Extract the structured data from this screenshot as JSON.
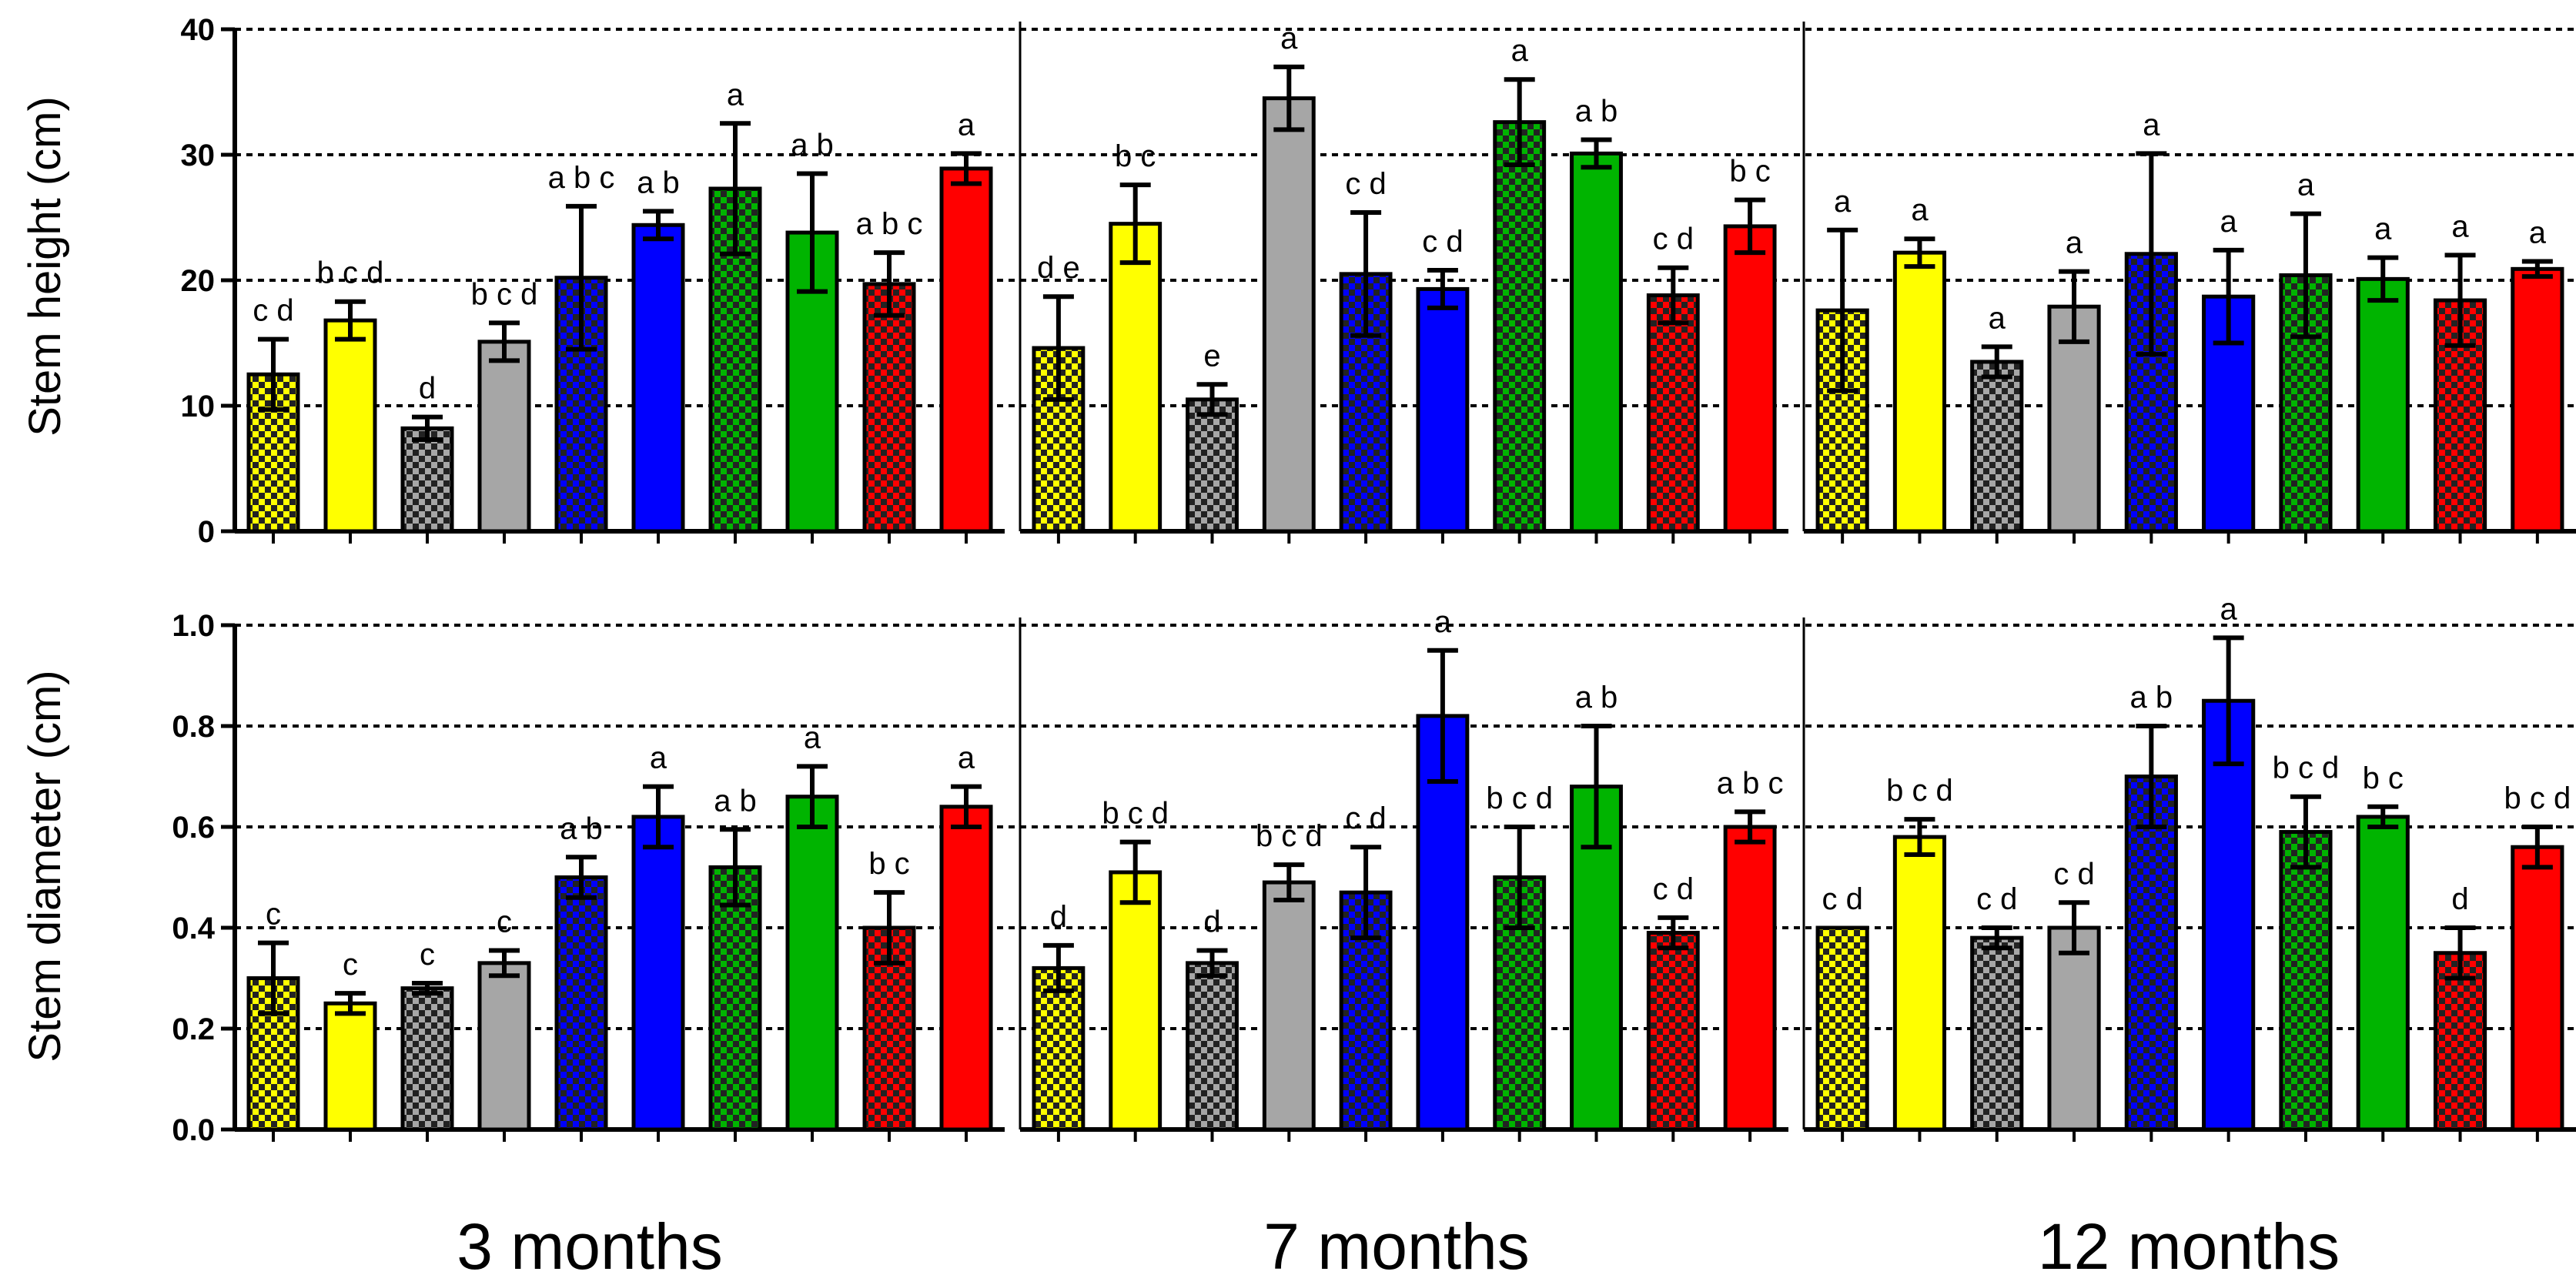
{
  "colors": {
    "yellow": "#ffff00",
    "gray": "#a6a6a6",
    "blue": "#0000ff",
    "green": "#00b400",
    "red": "#ff0000"
  },
  "bar_styles": [
    {
      "color": "yellow",
      "pattern": "checker"
    },
    {
      "color": "yellow",
      "pattern": "solid"
    },
    {
      "color": "gray",
      "pattern": "checker"
    },
    {
      "color": "gray",
      "pattern": "solid"
    },
    {
      "color": "blue",
      "pattern": "checker"
    },
    {
      "color": "blue",
      "pattern": "solid"
    },
    {
      "color": "green",
      "pattern": "checker"
    },
    {
      "color": "green",
      "pattern": "solid"
    },
    {
      "color": "red",
      "pattern": "checker"
    },
    {
      "color": "red",
      "pattern": "solid"
    }
  ],
  "period_labels": [
    "3 months",
    "7 months",
    "12 months"
  ],
  "chart_data": [
    {
      "type": "bar",
      "title": "",
      "ylabel": "Stem height (cm)",
      "ylim": [
        0,
        40
      ],
      "yticks": [
        "0",
        "10",
        "20",
        "30",
        "40"
      ],
      "grid": "dashed at 10, 20, 30, 40",
      "panels": [
        {
          "period": "3 months",
          "values": [
            12.5,
            16.8,
            8.2,
            15.1,
            20.2,
            24.4,
            27.3,
            23.8,
            19.7,
            28.9
          ],
          "errors": [
            2.8,
            1.5,
            0.9,
            1.5,
            5.7,
            1.1,
            5.2,
            4.7,
            2.5,
            1.2
          ],
          "letters": [
            "c d",
            "b c d",
            "d",
            "b c d",
            "a b c",
            "a b",
            "a",
            "a b",
            "a b c",
            "a"
          ]
        },
        {
          "period": "7 months",
          "values": [
            14.6,
            24.5,
            10.5,
            34.5,
            20.5,
            19.3,
            32.6,
            30.1,
            18.8,
            24.3
          ],
          "errors": [
            4.1,
            3.1,
            1.2,
            2.5,
            4.9,
            1.5,
            3.4,
            1.1,
            2.2,
            2.1
          ],
          "letters": [
            "d e",
            "b c",
            "e",
            "a",
            "c d",
            "c d",
            "a",
            "a b",
            "c d",
            "b c"
          ]
        },
        {
          "period": "12 months",
          "values": [
            17.6,
            22.2,
            13.5,
            17.9,
            22.1,
            18.7,
            20.4,
            20.1,
            18.4,
            20.9
          ],
          "errors": [
            6.4,
            1.1,
            1.2,
            2.8,
            8.0,
            3.7,
            4.9,
            1.7,
            3.6,
            0.6
          ],
          "letters": [
            "a",
            "a",
            "a",
            "a",
            "a",
            "a",
            "a",
            "a",
            "a",
            "a"
          ]
        }
      ]
    },
    {
      "type": "bar",
      "title": "",
      "ylabel": "Stem diameter (cm)",
      "ylim": [
        0,
        1.0
      ],
      "yticks": [
        "0.0",
        "0.2",
        "0.4",
        "0.6",
        "0.8",
        "1.0"
      ],
      "grid": "dashed at 0.2, 0.4, 0.6, 0.8, 1.0",
      "panels": [
        {
          "period": "3 months",
          "values": [
            0.3,
            0.25,
            0.28,
            0.33,
            0.5,
            0.62,
            0.52,
            0.66,
            0.4,
            0.64
          ],
          "errors": [
            0.07,
            0.02,
            0.01,
            0.025,
            0.04,
            0.06,
            0.075,
            0.06,
            0.07,
            0.04
          ],
          "letters": [
            "c",
            "c",
            "c",
            "c",
            "a b",
            "a",
            "a b",
            "a",
            "b c",
            "a"
          ]
        },
        {
          "period": "7 months",
          "values": [
            0.32,
            0.51,
            0.33,
            0.49,
            0.47,
            0.82,
            0.5,
            0.68,
            0.39,
            0.6
          ],
          "errors": [
            0.045,
            0.06,
            0.025,
            0.035,
            0.09,
            0.13,
            0.1,
            0.12,
            0.03,
            0.03
          ],
          "letters": [
            "d",
            "b c d",
            "d",
            "b c d",
            "c d",
            "a",
            "b c d",
            "a b",
            "c d",
            "a b c"
          ]
        },
        {
          "period": "12 months",
          "values": [
            0.4,
            0.58,
            0.38,
            0.4,
            0.7,
            0.85,
            0.59,
            0.62,
            0.35,
            0.56
          ],
          "errors": [
            0.0,
            0.035,
            0.02,
            0.05,
            0.1,
            0.125,
            0.07,
            0.02,
            0.05,
            0.04
          ],
          "letters": [
            "c d",
            "b c d",
            "c d",
            "c d",
            "a b",
            "a",
            "b c d",
            "b c",
            "d",
            "b c d"
          ]
        }
      ]
    }
  ]
}
